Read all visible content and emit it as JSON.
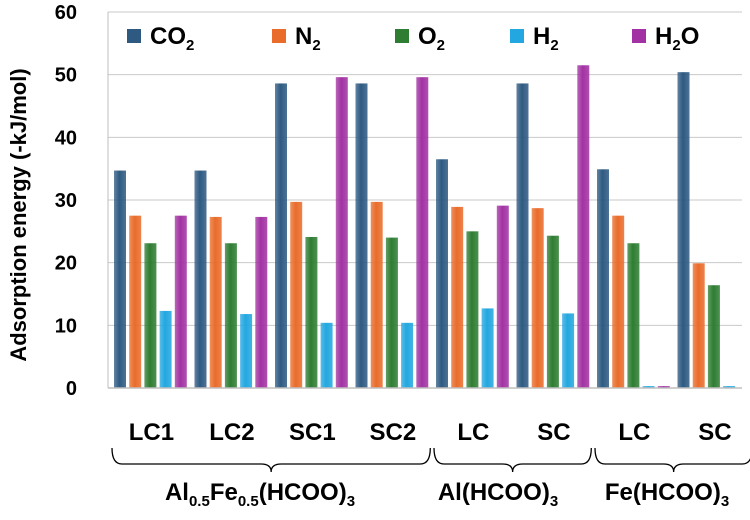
{
  "chart_data": {
    "type": "bar",
    "ylabel": "Adsorption energy (-kJ/mol)",
    "ylim": [
      0,
      60
    ],
    "yticks": [
      "0",
      "10",
      "20",
      "30",
      "40",
      "50",
      "60"
    ],
    "grid": true,
    "legend_position": "top",
    "categories": [
      "LC1",
      "LC2",
      "SC1",
      "SC2",
      "LC",
      "SC",
      "LC",
      "SC"
    ],
    "groups": [
      {
        "label_parts": [
          [
            "Al",
            ""
          ],
          [
            "0.5",
            "sub"
          ],
          [
            "Fe",
            ""
          ],
          [
            "0.5",
            "sub"
          ],
          [
            "(HCOO)",
            ""
          ],
          [
            "3",
            "sub"
          ]
        ],
        "start": 0,
        "end": 3
      },
      {
        "label_parts": [
          [
            "Al(HCOO)",
            ""
          ],
          [
            "3",
            "sub"
          ]
        ],
        "start": 4,
        "end": 5
      },
      {
        "label_parts": [
          [
            "Fe(HCOO)",
            ""
          ],
          [
            "3",
            "sub"
          ]
        ],
        "start": 6,
        "end": 7
      }
    ],
    "series": [
      {
        "name": "CO2",
        "name_parts": [
          [
            "CO",
            ""
          ],
          [
            "2",
            "sub"
          ]
        ],
        "color": "#2E5A82",
        "values": [
          34.7,
          34.7,
          48.6,
          48.6,
          36.5,
          48.6,
          34.9,
          50.4
        ]
      },
      {
        "name": "N2",
        "name_parts": [
          [
            "N",
            ""
          ],
          [
            "2",
            "sub"
          ]
        ],
        "color": "#E96C2B",
        "values": [
          27.5,
          27.3,
          29.7,
          29.7,
          28.9,
          28.7,
          27.5,
          19.9
        ]
      },
      {
        "name": "O2",
        "name_parts": [
          [
            "O",
            ""
          ],
          [
            "2",
            "sub"
          ]
        ],
        "color": "#2E7D32",
        "values": [
          23.1,
          23.1,
          24.1,
          24.0,
          25.0,
          24.3,
          23.1,
          16.4
        ]
      },
      {
        "name": "H2",
        "name_parts": [
          [
            "H",
            ""
          ],
          [
            "2",
            "sub"
          ]
        ],
        "color": "#22A7E0",
        "values": [
          12.3,
          11.8,
          10.4,
          10.4,
          12.7,
          11.9,
          0.3,
          0.3
        ]
      },
      {
        "name": "H2O",
        "name_parts": [
          [
            "H",
            ""
          ],
          [
            "2",
            "sub"
          ],
          [
            "O",
            ""
          ]
        ],
        "color": "#A232A3",
        "values": [
          27.5,
          27.3,
          49.6,
          49.6,
          29.1,
          51.5,
          0.3,
          null
        ]
      }
    ]
  }
}
